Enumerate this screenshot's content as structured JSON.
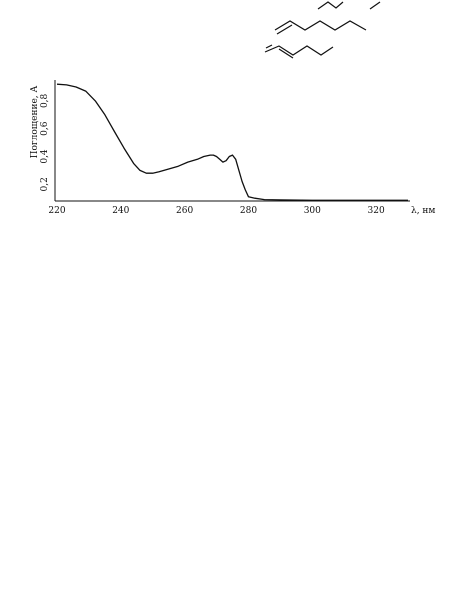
{
  "chart_data": {
    "type": "line",
    "title": "",
    "xlabel": "λ, нм",
    "ylabel": "Поглощение, А",
    "xlim": [
      220,
      330
    ],
    "ylim": [
      0.08,
      0.95
    ],
    "x_ticks": [
      "220",
      "240",
      "260",
      "280",
      "300",
      "320"
    ],
    "y_ticks": [
      "0,2",
      "0,4",
      "0,6",
      "0,8"
    ],
    "grid": false,
    "legend": "none",
    "colors": {
      "line": "#111111",
      "axis": "#111111"
    },
    "series": [
      {
        "x": [
          220,
          223,
          226,
          229,
          232,
          235,
          238,
          241,
          244,
          246,
          248,
          250,
          252,
          255,
          258,
          261,
          264,
          266,
          268,
          269,
          270,
          271,
          272,
          273,
          274,
          275,
          276,
          277,
          278,
          279,
          280,
          282,
          285,
          290,
          300,
          310,
          320,
          330
        ],
        "y": [
          0.92,
          0.915,
          0.9,
          0.87,
          0.8,
          0.7,
          0.58,
          0.46,
          0.35,
          0.3,
          0.28,
          0.28,
          0.29,
          0.31,
          0.33,
          0.36,
          0.38,
          0.4,
          0.41,
          0.41,
          0.4,
          0.38,
          0.36,
          0.37,
          0.4,
          0.41,
          0.38,
          0.3,
          0.22,
          0.16,
          0.11,
          0.1,
          0.09,
          0.088,
          0.085,
          0.085,
          0.085,
          0.085
        ]
      }
    ]
  },
  "structures": [
    {
      "name": "structure-fragment-top"
    },
    {
      "name": "structure-long-chain"
    },
    {
      "name": "structure-short-chain"
    }
  ]
}
